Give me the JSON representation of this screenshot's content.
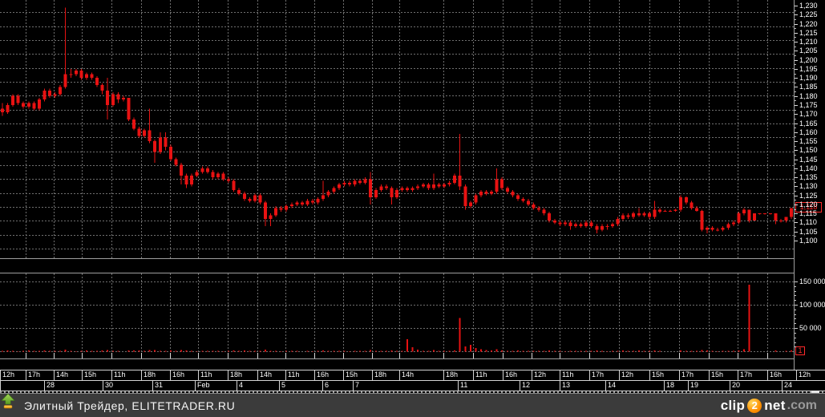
{
  "footer": {
    "credit": "Элитный Трейдер, ELITETRADER.RU",
    "watermark": {
      "word1": "clip",
      "digit": "2",
      "word2": "net",
      "tld": ".com"
    }
  },
  "colors": {
    "background": "#000000",
    "bar_red": "#e81212",
    "grid_gray": "#6f6f6f",
    "axis_text": "#ffffff",
    "separator": "#9e9e9e",
    "footer_bg": "#3b3b3b",
    "logo_orange": "#ff9000",
    "logo_green": "#6fae35"
  },
  "chart_data": {
    "type": "candlestick",
    "title": "",
    "grid": "dotted",
    "legend": "none",
    "price_axis": {
      "min": 1.1,
      "max": 1.23,
      "tick_step": 0.005,
      "labels": [
        "1,230",
        "1,225",
        "1,220",
        "1,215",
        "1,210",
        "1,205",
        "1,200",
        "1,195",
        "1,190",
        "1,185",
        "1,180",
        "1,175",
        "1,170",
        "1,165",
        "1,160",
        "1,155",
        "1,150",
        "1,145",
        "1,140",
        "1,135",
        "1,130",
        "1,125",
        "1,120",
        "1,115",
        "1,110",
        "1,105",
        "1,100"
      ],
      "current_value": 1.118,
      "current_label": "1,118"
    },
    "volume_axis": {
      "max": 150000,
      "gridlines": [
        150000,
        100000,
        50000,
        0
      ],
      "labels": [
        [
          "150 000",
          150000
        ],
        [
          "100 000",
          100000
        ],
        [
          "50 000",
          50000
        ]
      ],
      "current_value": 1,
      "current_label": "1"
    },
    "time_axis": {
      "hours": [
        [
          "12h",
          0,
          32
        ],
        [
          "17h",
          32,
          67
        ],
        [
          "14h",
          67,
          102
        ],
        [
          "15h",
          102,
          139
        ],
        [
          "11h",
          139,
          176
        ],
        [
          "18h",
          176,
          212
        ],
        [
          "16h",
          212,
          247
        ],
        [
          "11h",
          247,
          284
        ],
        [
          "18h",
          284,
          321
        ],
        [
          "14h",
          321,
          356
        ],
        [
          "11h",
          356,
          392
        ],
        [
          "16h",
          392,
          428
        ],
        [
          "15h",
          428,
          464
        ],
        [
          "18h",
          464,
          498
        ],
        [
          "14h",
          498,
          553
        ],
        [
          "18h",
          553,
          590
        ],
        [
          "11h",
          590,
          627
        ],
        [
          "16h",
          627,
          663
        ],
        [
          "12h",
          663,
          698
        ],
        [
          "11h",
          698,
          735
        ],
        [
          "17h",
          735,
          772
        ],
        [
          "12h",
          772,
          810
        ],
        [
          "15h",
          810,
          847
        ],
        [
          "17h",
          847,
          884
        ],
        [
          "15h",
          884,
          920
        ],
        [
          "17h",
          920,
          957
        ],
        [
          "16h",
          957,
          993
        ],
        [
          "12h",
          993,
          1029
        ]
      ],
      "dates": [
        [
          "",
          0,
          55
        ],
        [
          "28",
          55,
          128
        ],
        [
          "30",
          128,
          190
        ],
        [
          "31",
          190,
          243
        ],
        [
          "Feb",
          243,
          295
        ],
        [
          "4",
          295,
          348
        ],
        [
          "5",
          348,
          402
        ],
        [
          "6",
          402,
          440
        ],
        [
          "7",
          440,
          571
        ],
        [
          "11",
          571,
          648
        ],
        [
          "12",
          648,
          698
        ],
        [
          "13",
          698,
          755
        ],
        [
          "14",
          755,
          828
        ],
        [
          "18",
          828,
          858
        ],
        [
          "19",
          858,
          910
        ],
        [
          "20",
          910,
          975
        ],
        [
          "24",
          975,
          1029
        ]
      ]
    },
    "bars": [
      [
        1.173,
        1.176,
        1.169,
        1.171
      ],
      [
        1.171,
        1.176,
        1.17,
        1.175
      ],
      [
        1.175,
        1.181,
        1.174,
        1.18
      ],
      [
        1.18,
        1.181,
        1.175,
        1.176
      ],
      [
        1.176,
        1.177,
        1.173,
        1.174
      ],
      [
        1.174,
        1.177,
        1.173,
        1.176
      ],
      [
        1.176,
        1.177,
        1.172,
        1.173
      ],
      [
        1.173,
        1.179,
        1.172,
        1.178
      ],
      [
        1.178,
        1.184,
        1.177,
        1.183
      ],
      [
        1.183,
        1.184,
        1.179,
        1.18
      ],
      [
        1.18,
        1.182,
        1.179,
        1.181
      ],
      [
        1.181,
        1.186,
        1.18,
        1.185
      ],
      [
        1.185,
        1.229,
        1.184,
        1.192
      ],
      [
        1.192,
        1.195,
        1.19,
        1.192
      ],
      [
        1.192,
        1.195,
        1.191,
        1.194
      ],
      [
        1.194,
        1.195,
        1.189,
        1.19
      ],
      [
        1.19,
        1.193,
        1.189,
        1.192
      ],
      [
        1.192,
        1.193,
        1.189,
        1.19
      ],
      [
        1.19,
        1.191,
        1.185,
        1.186
      ],
      [
        1.186,
        1.187,
        1.181,
        1.183
      ],
      [
        1.183,
        1.19,
        1.167,
        1.175
      ],
      [
        1.175,
        1.182,
        1.174,
        1.181
      ],
      [
        1.181,
        1.182,
        1.176,
        1.178
      ],
      [
        1.178,
        1.18,
        1.177,
        1.179
      ],
      [
        1.179,
        1.179,
        1.166,
        1.167
      ],
      [
        1.167,
        1.168,
        1.161,
        1.162
      ],
      [
        1.162,
        1.163,
        1.157,
        1.158
      ],
      [
        1.158,
        1.162,
        1.157,
        1.161
      ],
      [
        1.161,
        1.173,
        1.154,
        1.155
      ],
      [
        1.155,
        1.156,
        1.143,
        1.149
      ],
      [
        1.149,
        1.16,
        1.148,
        1.157
      ],
      [
        1.157,
        1.16,
        1.15,
        1.152
      ],
      [
        1.152,
        1.153,
        1.144,
        1.145
      ],
      [
        1.145,
        1.146,
        1.141,
        1.142
      ],
      [
        1.142,
        1.143,
        1.131,
        1.136
      ],
      [
        1.136,
        1.137,
        1.129,
        1.131
      ],
      [
        1.131,
        1.137,
        1.13,
        1.136
      ],
      [
        1.136,
        1.139,
        1.135,
        1.138
      ],
      [
        1.138,
        1.141,
        1.137,
        1.14
      ],
      [
        1.14,
        1.141,
        1.137,
        1.138
      ],
      [
        1.138,
        1.139,
        1.134,
        1.135
      ],
      [
        1.135,
        1.138,
        1.134,
        1.137
      ],
      [
        1.137,
        1.138,
        1.133,
        1.134
      ],
      [
        1.134,
        1.135,
        1.132,
        1.133
      ],
      [
        1.133,
        1.134,
        1.127,
        1.128
      ],
      [
        1.128,
        1.129,
        1.125,
        1.126
      ],
      [
        1.126,
        1.127,
        1.122,
        1.123
      ],
      [
        1.123,
        1.124,
        1.121,
        1.122
      ],
      [
        1.122,
        1.126,
        1.121,
        1.125
      ],
      [
        1.125,
        1.126,
        1.12,
        1.121
      ],
      [
        1.121,
        1.122,
        1.108,
        1.112
      ],
      [
        1.112,
        1.115,
        1.108,
        1.114
      ],
      [
        1.114,
        1.119,
        1.113,
        1.118
      ],
      [
        1.118,
        1.119,
        1.116,
        1.117
      ],
      [
        1.117,
        1.12,
        1.116,
        1.119
      ],
      [
        1.119,
        1.121,
        1.118,
        1.12
      ],
      [
        1.12,
        1.122,
        1.119,
        1.121
      ],
      [
        1.121,
        1.122,
        1.119,
        1.12
      ],
      [
        1.12,
        1.123,
        1.119,
        1.122
      ],
      [
        1.122,
        1.123,
        1.12,
        1.121
      ],
      [
        1.121,
        1.124,
        1.12,
        1.123
      ],
      [
        1.123,
        1.133,
        1.122,
        1.125
      ],
      [
        1.125,
        1.128,
        1.124,
        1.127
      ],
      [
        1.127,
        1.13,
        1.126,
        1.129
      ],
      [
        1.129,
        1.132,
        1.128,
        1.131
      ],
      [
        1.131,
        1.133,
        1.13,
        1.132
      ],
      [
        1.132,
        1.133,
        1.13,
        1.131
      ],
      [
        1.131,
        1.134,
        1.13,
        1.133
      ],
      [
        1.133,
        1.134,
        1.131,
        1.132
      ],
      [
        1.132,
        1.135,
        1.131,
        1.134
      ],
      [
        1.134,
        1.138,
        1.12,
        1.124
      ],
      [
        1.124,
        1.129,
        1.123,
        1.128
      ],
      [
        1.128,
        1.131,
        1.127,
        1.13
      ],
      [
        1.13,
        1.131,
        1.128,
        1.129
      ],
      [
        1.129,
        1.13,
        1.12,
        1.124
      ],
      [
        1.124,
        1.129,
        1.123,
        1.128
      ],
      [
        1.128,
        1.13,
        1.127,
        1.129
      ],
      [
        1.129,
        1.13,
        1.127,
        1.128
      ],
      [
        1.128,
        1.13,
        1.127,
        1.129
      ],
      [
        1.129,
        1.131,
        1.128,
        1.13
      ],
      [
        1.13,
        1.132,
        1.129,
        1.131
      ],
      [
        1.131,
        1.132,
        1.128,
        1.129
      ],
      [
        1.129,
        1.137,
        1.128,
        1.131
      ],
      [
        1.131,
        1.132,
        1.129,
        1.13
      ],
      [
        1.13,
        1.132,
        1.129,
        1.131
      ],
      [
        1.131,
        1.133,
        1.13,
        1.132
      ],
      [
        1.132,
        1.137,
        1.131,
        1.136
      ],
      [
        1.136,
        1.159,
        1.128,
        1.13
      ],
      [
        1.13,
        1.131,
        1.117,
        1.119
      ],
      [
        1.119,
        1.122,
        1.118,
        1.121
      ],
      [
        1.121,
        1.126,
        1.12,
        1.125
      ],
      [
        1.125,
        1.128,
        1.124,
        1.127
      ],
      [
        1.127,
        1.128,
        1.125,
        1.126
      ],
      [
        1.126,
        1.128,
        1.125,
        1.127
      ],
      [
        1.127,
        1.14,
        1.126,
        1.134
      ],
      [
        1.134,
        1.135,
        1.128,
        1.129
      ],
      [
        1.129,
        1.13,
        1.126,
        1.127
      ],
      [
        1.127,
        1.128,
        1.124,
        1.125
      ],
      [
        1.125,
        1.126,
        1.122,
        1.123
      ],
      [
        1.123,
        1.124,
        1.121,
        1.122
      ],
      [
        1.122,
        1.123,
        1.119,
        1.12
      ],
      [
        1.12,
        1.121,
        1.117,
        1.118
      ],
      [
        1.118,
        1.119,
        1.116,
        1.117
      ],
      [
        1.117,
        1.118,
        1.114,
        1.115
      ],
      [
        1.115,
        1.116,
        1.11,
        1.111
      ],
      [
        1.111,
        1.112,
        1.109,
        1.11
      ],
      [
        1.11,
        1.111,
        1.108,
        1.109
      ],
      [
        1.109,
        1.111,
        1.108,
        1.11
      ],
      [
        1.11,
        1.111,
        1.106,
        1.108
      ],
      [
        1.108,
        1.11,
        1.107,
        1.109
      ],
      [
        1.109,
        1.11,
        1.107,
        1.108
      ],
      [
        1.108,
        1.111,
        1.107,
        1.11
      ],
      [
        1.11,
        1.111,
        1.107,
        1.108
      ],
      [
        1.108,
        1.109,
        1.104,
        1.106
      ],
      [
        1.106,
        1.109,
        1.105,
        1.108
      ],
      [
        1.108,
        1.109,
        1.106,
        1.108
      ],
      [
        1.108,
        1.11,
        1.107,
        1.109
      ],
      [
        1.109,
        1.113,
        1.108,
        1.112
      ],
      [
        1.112,
        1.115,
        1.111,
        1.114
      ],
      [
        1.114,
        1.115,
        1.112,
        1.113
      ],
      [
        1.113,
        1.116,
        1.112,
        1.115
      ],
      [
        1.115,
        1.118,
        1.113,
        1.114
      ],
      [
        1.114,
        1.116,
        1.113,
        1.115
      ],
      [
        1.115,
        1.116,
        1.112,
        1.113
      ],
      [
        1.113,
        1.122,
        1.112,
        1.117
      ],
      [
        1.117,
        1.118,
        1.115,
        1.116
      ],
      [
        1.116,
        1.117,
        1.116,
        1.1165
      ],
      [
        1.1165,
        1.117,
        1.116,
        1.1165
      ],
      [
        1.1165,
        1.1175,
        1.116,
        1.117
      ],
      [
        1.117,
        1.125,
        1.116,
        1.124
      ],
      [
        1.124,
        1.1245,
        1.12,
        1.121
      ],
      [
        1.121,
        1.122,
        1.117,
        1.118
      ],
      [
        1.118,
        1.119,
        1.116,
        1.1165
      ],
      [
        1.1165,
        1.117,
        1.105,
        1.106
      ],
      [
        1.106,
        1.108,
        1.104,
        1.107
      ],
      [
        1.107,
        1.108,
        1.105,
        1.106
      ],
      [
        1.106,
        1.107,
        1.105,
        1.106
      ],
      [
        1.106,
        1.108,
        1.105,
        1.107
      ],
      [
        1.107,
        1.11,
        1.106,
        1.109
      ],
      [
        1.109,
        1.111,
        1.108,
        1.11
      ],
      [
        1.11,
        1.116,
        1.109,
        1.115
      ],
      [
        1.115,
        1.118,
        1.114,
        1.117
      ],
      [
        1.117,
        1.117,
        1.11,
        1.111
      ],
      [
        1.111,
        1.115,
        1.111,
        1.115
      ],
      [
        1.115,
        1.115,
        1.1145,
        1.115
      ],
      [
        1.115,
        1.115,
        1.1145,
        1.115
      ],
      [
        1.115,
        1.115,
        1.1145,
        1.115
      ],
      [
        1.115,
        1.115,
        1.109,
        1.111
      ],
      [
        1.111,
        1.112,
        1.11,
        1.111
      ],
      [
        1.111,
        1.113,
        1.11,
        1.113
      ],
      [
        1.113,
        1.118,
        1.112,
        1.118
      ]
    ],
    "volumes": [
      1500,
      2200,
      1800,
      900,
      1200,
      2500,
      1700,
      1100,
      2000,
      1500,
      1200,
      1800,
      4000,
      1500,
      900,
      1200,
      2000,
      1100,
      1600,
      2100,
      3200,
      1400,
      1000,
      800,
      2600,
      1900,
      2300,
      1200,
      3100,
      2800,
      1500,
      1200,
      2400,
      1600,
      2900,
      2100,
      1300,
      900,
      1100,
      1400,
      1000,
      1200,
      900,
      1500,
      2200,
      1800,
      2600,
      1200,
      1000,
      1600,
      3800,
      1400,
      1100,
      900,
      1300,
      1000,
      1200,
      800,
      1500,
      900,
      1100,
      2400,
      1300,
      1000,
      1600,
      1200,
      900,
      1400,
      1000,
      1700,
      3500,
      1200,
      1500,
      1000,
      2200,
      1300,
      1100,
      26000,
      9000,
      4200,
      1800,
      1300,
      2800,
      1100,
      1500,
      1200,
      2100,
      72000,
      11000,
      14000,
      7500,
      5200,
      3100,
      2600,
      4800,
      2200,
      1700,
      1400,
      1900,
      1300,
      1500,
      1100,
      1300,
      1600,
      2400,
      1200,
      1000,
      900,
      1400,
      1100,
      1000,
      1300,
      1100,
      2100,
      1200,
      900,
      1100,
      1600,
      1900,
      1200,
      1400,
      2600,
      1100,
      1300,
      2400,
      1000,
      600,
      500,
      800,
      2600,
      1500,
      1800,
      1000,
      3200,
      2100,
      1200,
      900,
      1100,
      1400,
      1000,
      2500,
      4500,
      143000,
      400,
      300,
      300,
      350,
      2100,
      600,
      1100,
      2600
    ]
  }
}
